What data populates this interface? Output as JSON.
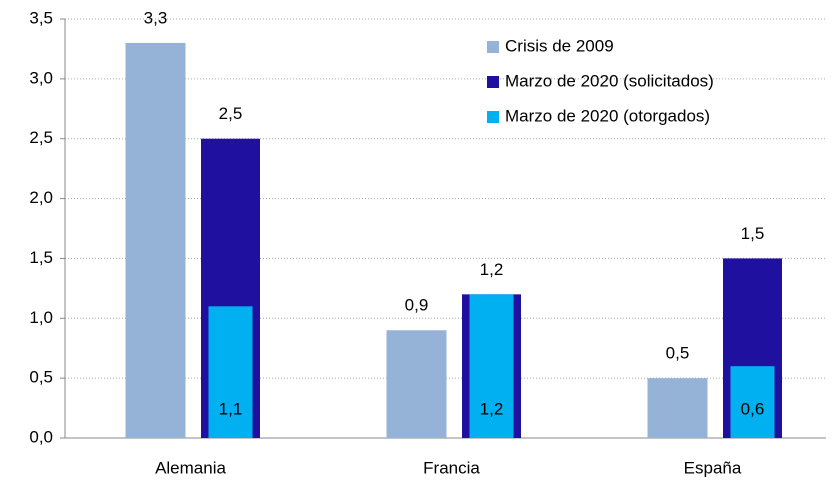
{
  "chart_data": {
    "type": "bar",
    "categories": [
      "Alemania",
      "Francia",
      "España"
    ],
    "series": [
      {
        "name": "Crisis de 2009",
        "color": "#95b3d7",
        "values": [
          3.3,
          0.9,
          0.5
        ],
        "value_labels": [
          "3,3",
          "0,9",
          "0,5"
        ]
      },
      {
        "name": "Marzo de 2020 (solicitados)",
        "color": "#2010a0",
        "values": [
          2.5,
          1.2,
          1.5
        ],
        "value_labels": [
          "2,5",
          "1,2",
          "1,5"
        ]
      },
      {
        "name": "Marzo de 2020 (otorgados)",
        "color": "#00b0f0",
        "values": [
          1.1,
          1.2,
          0.6
        ],
        "value_labels": [
          "1,1",
          "1,2",
          "0,6"
        ]
      }
    ],
    "ylim": [
      0,
      3.5
    ],
    "yticks": [
      {
        "value": 0,
        "label": "0,0"
      },
      {
        "value": 0.5,
        "label": "0,5"
      },
      {
        "value": 1,
        "label": "1,0"
      },
      {
        "value": 1.5,
        "label": "1,5"
      },
      {
        "value": 2,
        "label": "2,0"
      },
      {
        "value": 2.5,
        "label": "2,5"
      },
      {
        "value": 3,
        "label": "3,0"
      },
      {
        "value": 3.5,
        "label": "3,5"
      }
    ],
    "grid": true,
    "legend": "top-right"
  }
}
